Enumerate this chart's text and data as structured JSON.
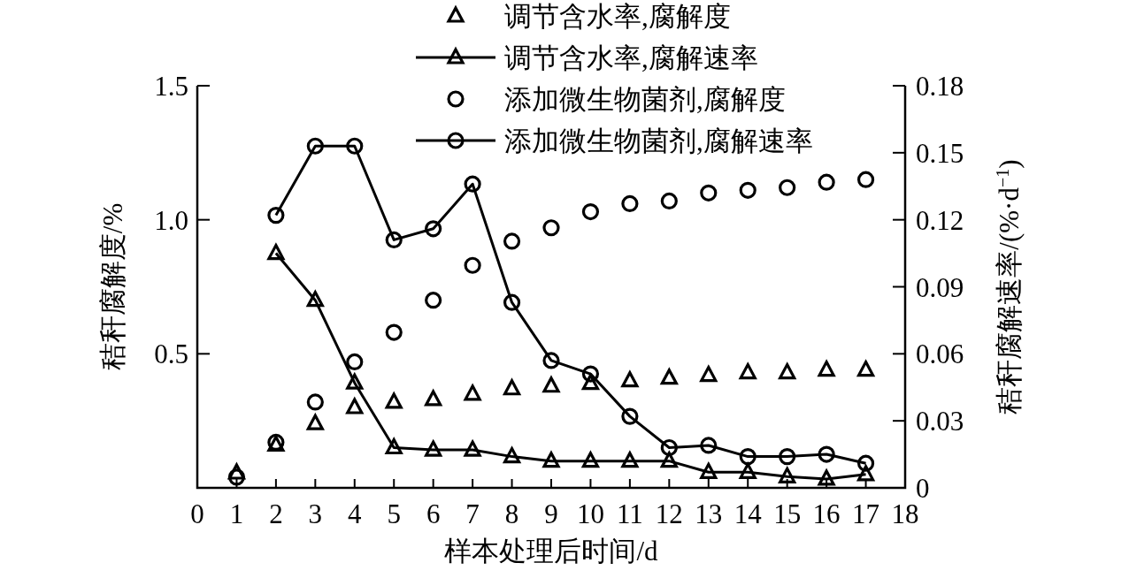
{
  "chart_data": {
    "type": "line",
    "xlabel": "样本处理后时间/d",
    "ylabel": "秸秆腐解度/%",
    "y2label": "秸秆腐解速率/(%·d$^{−1}$)",
    "x": [
      1,
      2,
      3,
      4,
      5,
      6,
      7,
      8,
      9,
      10,
      11,
      12,
      13,
      14,
      15,
      16,
      17
    ],
    "xlim": [
      0,
      18
    ],
    "xticks": [
      0,
      1,
      2,
      3,
      4,
      5,
      6,
      7,
      8,
      9,
      10,
      11,
      12,
      13,
      14,
      15,
      16,
      17,
      18
    ],
    "ylim": [
      0,
      1.5
    ],
    "yticks": [
      0.5,
      {
        "value": 1.0,
        "label": "1.0"
      },
      1.5
    ],
    "y2lim": [
      0,
      0.18
    ],
    "y2ticks": [
      0,
      0.03,
      0.06,
      0.09,
      0.12,
      0.15,
      0.18
    ],
    "legend": "top",
    "series": [
      {
        "name": "调节含水率,腐解度",
        "type": "scatter",
        "marker": "triangle",
        "color": "#000000",
        "values": [
          0.056,
          0.16,
          0.24,
          0.3,
          0.32,
          0.33,
          0.35,
          0.37,
          0.38,
          0.39,
          0.4,
          0.41,
          0.42,
          0.43,
          0.43,
          0.44,
          0.44
        ]
      },
      {
        "name": "调节含水率,腐解速率",
        "type": "line",
        "axis": "y2",
        "marker": "triangle",
        "color": "#000000",
        "values": [
          null,
          0.105,
          0.084,
          0.047,
          0.018,
          0.017,
          0.017,
          0.014,
          0.012,
          0.012,
          0.012,
          0.012,
          0.007,
          0.007,
          0.005,
          0.004,
          0.006
        ]
      },
      {
        "name": "添加微生物菌剂,腐解度",
        "type": "scatter",
        "marker": "circle",
        "color": "#000000",
        "values": [
          0.04,
          0.17,
          0.32,
          0.47,
          0.58,
          0.7,
          0.83,
          0.92,
          0.97,
          1.03,
          1.06,
          1.07,
          1.1,
          1.11,
          1.12,
          1.14,
          1.15
        ]
      },
      {
        "name": "添加微生物菌剂,腐解速率",
        "type": "line",
        "axis": "y2",
        "marker": "circle",
        "color": "#000000",
        "values": [
          null,
          0.122,
          0.153,
          0.153,
          0.111,
          0.116,
          0.136,
          0.083,
          0.057,
          0.051,
          0.032,
          0.018,
          0.019,
          0.014,
          0.014,
          0.015,
          0.011
        ]
      }
    ]
  }
}
